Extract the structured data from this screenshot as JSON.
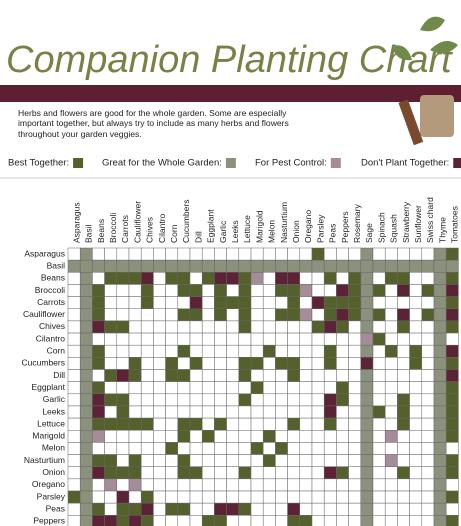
{
  "chart_data": {
    "type": "matrix",
    "title": "Companion Planting Chart",
    "subtitle": "Herbs and flowers are good for the whole garden. Some are especially important together, but always try to include as many herbs and flowers throughout your garden veggies.",
    "legend": [
      {
        "label": "Best Together:",
        "code": 1,
        "color": "#55612c"
      },
      {
        "label": "Great for the Whole Garden:",
        "code": 2,
        "color": "#8b917d"
      },
      {
        "label": "For Pest Control:",
        "code": 3,
        "color": "#a68b98"
      },
      {
        "label": "Don't Plant Together:",
        "code": 4,
        "color": "#5c2235"
      }
    ],
    "columns": [
      "Asparagus",
      "Basil",
      "Beans",
      "Broccoli",
      "Carrots",
      "Cauliflower",
      "Chives",
      "Cilantro",
      "Corn",
      "Cucumbers",
      "Dill",
      "Eggplant",
      "Garlic",
      "Leeks",
      "Lettuce",
      "Marigold",
      "Melon",
      "Nasturtium",
      "Onion",
      "Oregano",
      "Parsley",
      "Peas",
      "Peppers",
      "Rosemary",
      "Sage",
      "Spinach",
      "Squash",
      "Strawberry",
      "Sunflower",
      "Swiss chard",
      "Thyme",
      "Tomatoes"
    ],
    "rows": [
      "Asparagus",
      "Basil",
      "Beans",
      "Broccoli",
      "Carrots",
      "Cauliflower",
      "Chives",
      "Cilantro",
      "Corn",
      "Cucumbers",
      "Dill",
      "Eggplant",
      "Garlic",
      "Leeks",
      "Lettuce",
      "Marigold",
      "Melon",
      "Nasturtium",
      "Onion",
      "Oregano",
      "Parsley",
      "Peas",
      "Peppers"
    ],
    "grid": [
      [
        0,
        2,
        0,
        0,
        0,
        0,
        0,
        0,
        0,
        0,
        0,
        0,
        0,
        0,
        0,
        0,
        0,
        0,
        0,
        0,
        1,
        0,
        0,
        0,
        2,
        0,
        0,
        0,
        0,
        0,
        2,
        1
      ],
      [
        2,
        2,
        2,
        2,
        2,
        2,
        2,
        2,
        2,
        2,
        2,
        2,
        2,
        2,
        2,
        2,
        2,
        2,
        2,
        2,
        2,
        2,
        2,
        2,
        2,
        2,
        2,
        2,
        2,
        2,
        2,
        2
      ],
      [
        0,
        2,
        0,
        1,
        1,
        1,
        4,
        0,
        1,
        1,
        0,
        1,
        4,
        4,
        1,
        3,
        0,
        4,
        4,
        0,
        0,
        1,
        0,
        1,
        2,
        0,
        1,
        1,
        0,
        0,
        2,
        1
      ],
      [
        0,
        2,
        1,
        0,
        0,
        0,
        1,
        0,
        0,
        1,
        1,
        0,
        1,
        0,
        1,
        0,
        0,
        1,
        1,
        3,
        0,
        0,
        4,
        1,
        2,
        1,
        0,
        4,
        0,
        1,
        2,
        4
      ],
      [
        0,
        2,
        1,
        0,
        0,
        0,
        1,
        0,
        0,
        0,
        4,
        0,
        1,
        1,
        1,
        0,
        0,
        0,
        1,
        0,
        4,
        1,
        1,
        1,
        2,
        0,
        0,
        0,
        0,
        0,
        2,
        1
      ],
      [
        0,
        2,
        1,
        0,
        0,
        0,
        0,
        0,
        0,
        1,
        1,
        0,
        1,
        0,
        1,
        0,
        0,
        1,
        1,
        3,
        0,
        1,
        4,
        1,
        2,
        1,
        0,
        4,
        0,
        1,
        2,
        4
      ],
      [
        0,
        2,
        4,
        1,
        1,
        0,
        0,
        0,
        0,
        0,
        0,
        0,
        0,
        0,
        1,
        0,
        0,
        0,
        0,
        0,
        1,
        4,
        1,
        0,
        2,
        0,
        0,
        1,
        0,
        0,
        2,
        1
      ],
      [
        0,
        2,
        0,
        0,
        0,
        0,
        0,
        0,
        0,
        0,
        0,
        0,
        0,
        0,
        0,
        0,
        0,
        0,
        0,
        0,
        0,
        0,
        0,
        0,
        3,
        1,
        0,
        0,
        0,
        0,
        2,
        0
      ],
      [
        0,
        2,
        1,
        0,
        0,
        0,
        0,
        0,
        0,
        1,
        0,
        0,
        0,
        0,
        0,
        0,
        1,
        0,
        0,
        0,
        0,
        1,
        0,
        0,
        2,
        0,
        1,
        0,
        1,
        0,
        2,
        4
      ],
      [
        0,
        2,
        1,
        0,
        0,
        1,
        0,
        0,
        1,
        0,
        1,
        0,
        0,
        0,
        1,
        1,
        0,
        1,
        1,
        0,
        0,
        1,
        0,
        0,
        4,
        0,
        0,
        0,
        1,
        0,
        2,
        1
      ],
      [
        0,
        2,
        0,
        1,
        4,
        1,
        0,
        0,
        1,
        1,
        0,
        0,
        0,
        0,
        1,
        0,
        0,
        0,
        1,
        0,
        0,
        0,
        0,
        0,
        2,
        0,
        0,
        0,
        0,
        0,
        2,
        4
      ],
      [
        0,
        2,
        1,
        0,
        0,
        0,
        0,
        0,
        0,
        0,
        0,
        0,
        0,
        0,
        0,
        1,
        0,
        0,
        0,
        0,
        0,
        0,
        1,
        0,
        2,
        0,
        0,
        0,
        0,
        0,
        2,
        1
      ],
      [
        0,
        2,
        4,
        1,
        1,
        0,
        0,
        0,
        0,
        0,
        0,
        0,
        0,
        0,
        1,
        0,
        0,
        0,
        0,
        0,
        0,
        4,
        1,
        0,
        2,
        0,
        0,
        1,
        0,
        0,
        2,
        1
      ],
      [
        0,
        2,
        4,
        0,
        1,
        0,
        0,
        0,
        0,
        0,
        0,
        0,
        0,
        0,
        0,
        0,
        0,
        0,
        0,
        0,
        0,
        4,
        0,
        0,
        2,
        1,
        0,
        1,
        0,
        0,
        2,
        1
      ],
      [
        0,
        2,
        1,
        1,
        1,
        1,
        1,
        0,
        0,
        1,
        1,
        0,
        1,
        0,
        0,
        0,
        0,
        0,
        1,
        0,
        0,
        1,
        0,
        0,
        2,
        0,
        0,
        1,
        0,
        0,
        2,
        1
      ],
      [
        0,
        2,
        3,
        0,
        0,
        0,
        0,
        0,
        0,
        1,
        0,
        1,
        0,
        0,
        0,
        0,
        1,
        0,
        0,
        0,
        0,
        0,
        0,
        0,
        2,
        0,
        3,
        0,
        0,
        0,
        2,
        1
      ],
      [
        0,
        2,
        0,
        0,
        0,
        0,
        0,
        0,
        1,
        0,
        0,
        0,
        0,
        0,
        0,
        1,
        0,
        1,
        0,
        0,
        0,
        0,
        0,
        0,
        2,
        0,
        0,
        0,
        0,
        0,
        2,
        0
      ],
      [
        0,
        2,
        1,
        1,
        0,
        1,
        0,
        0,
        0,
        1,
        0,
        0,
        0,
        0,
        0,
        0,
        1,
        0,
        0,
        0,
        0,
        0,
        0,
        0,
        2,
        0,
        3,
        0,
        0,
        0,
        2,
        1
      ],
      [
        0,
        2,
        4,
        1,
        1,
        1,
        0,
        0,
        0,
        1,
        1,
        0,
        0,
        0,
        1,
        0,
        0,
        0,
        0,
        0,
        0,
        4,
        1,
        0,
        2,
        0,
        0,
        1,
        0,
        0,
        2,
        1
      ],
      [
        0,
        2,
        0,
        3,
        0,
        3,
        0,
        0,
        0,
        0,
        0,
        0,
        0,
        0,
        0,
        0,
        0,
        0,
        0,
        0,
        0,
        0,
        0,
        0,
        2,
        0,
        0,
        0,
        0,
        0,
        2,
        0
      ],
      [
        1,
        2,
        0,
        0,
        4,
        0,
        1,
        0,
        0,
        0,
        0,
        0,
        0,
        0,
        0,
        0,
        0,
        0,
        0,
        0,
        0,
        0,
        0,
        0,
        2,
        0,
        0,
        0,
        0,
        0,
        2,
        1
      ],
      [
        0,
        2,
        1,
        0,
        1,
        1,
        4,
        0,
        1,
        1,
        0,
        0,
        4,
        4,
        1,
        0,
        0,
        0,
        4,
        0,
        0,
        0,
        0,
        0,
        2,
        0,
        0,
        0,
        0,
        0,
        2,
        0
      ],
      [
        0,
        2,
        4,
        4,
        1,
        4,
        1,
        0,
        0,
        0,
        0,
        1,
        1,
        0,
        0,
        0,
        0,
        0,
        1,
        1,
        0,
        0,
        0,
        0,
        2,
        0,
        0,
        0,
        0,
        0,
        2,
        1
      ]
    ]
  }
}
